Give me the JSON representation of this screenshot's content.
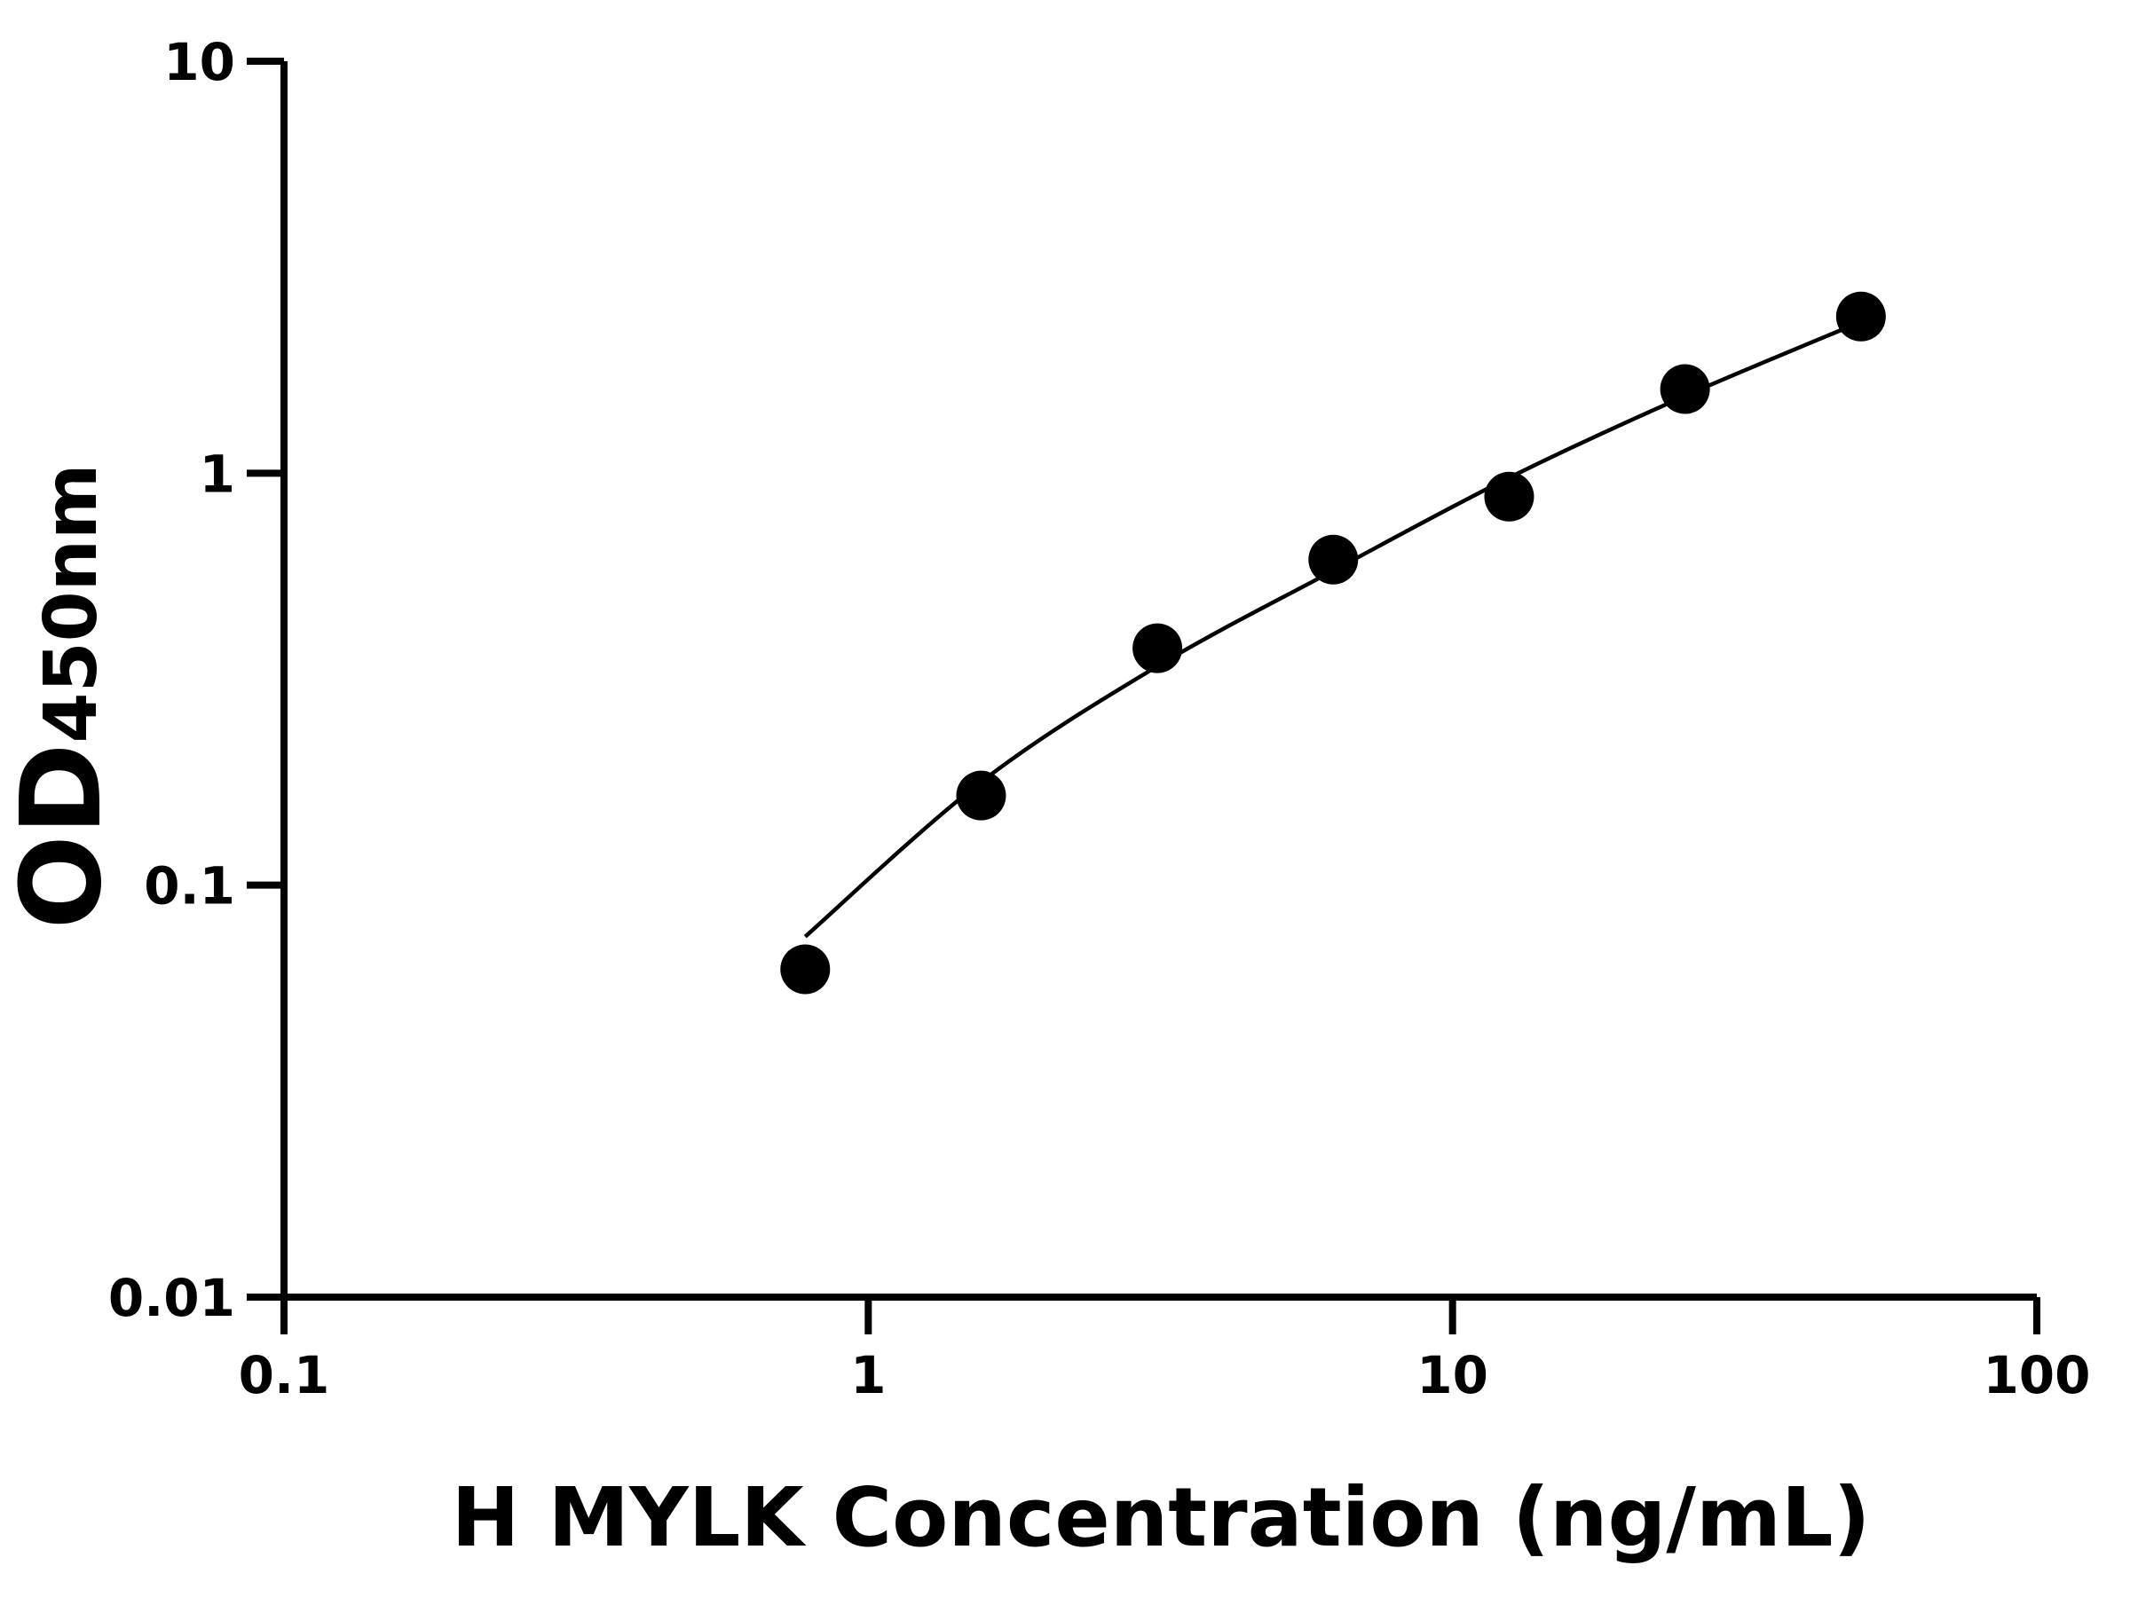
{
  "chart_data": {
    "type": "scatter",
    "xlabel": "H MYLK Concentration (ng/mL)",
    "ylabel": "OD",
    "ylabel_subscript": "450nm",
    "x_log": true,
    "y_log": true,
    "xlim": [
      0.1,
      100
    ],
    "xticks": [
      0.1,
      1,
      10,
      100
    ],
    "ylim": [
      0.01,
      10
    ],
    "yticks": [
      0.01,
      0.1,
      1,
      10
    ],
    "series": [
      {
        "color": "#000000",
        "x": [
          0.78,
          1.56,
          3.125,
          6.25,
          12.5,
          25,
          50
        ],
        "values": [
          0.0625,
          0.165,
          0.376,
          0.617,
          0.877,
          1.6,
          2.4
        ]
      },
      {
        "color": "#000000",
        "line": true,
        "x": [
          0.78,
          1.56,
          3.125,
          6.25,
          12.5,
          25,
          50
        ],
        "values": [
          0.075,
          0.178,
          0.34,
          0.58,
          0.975,
          1.54,
          2.33
        ]
      }
    ]
  }
}
